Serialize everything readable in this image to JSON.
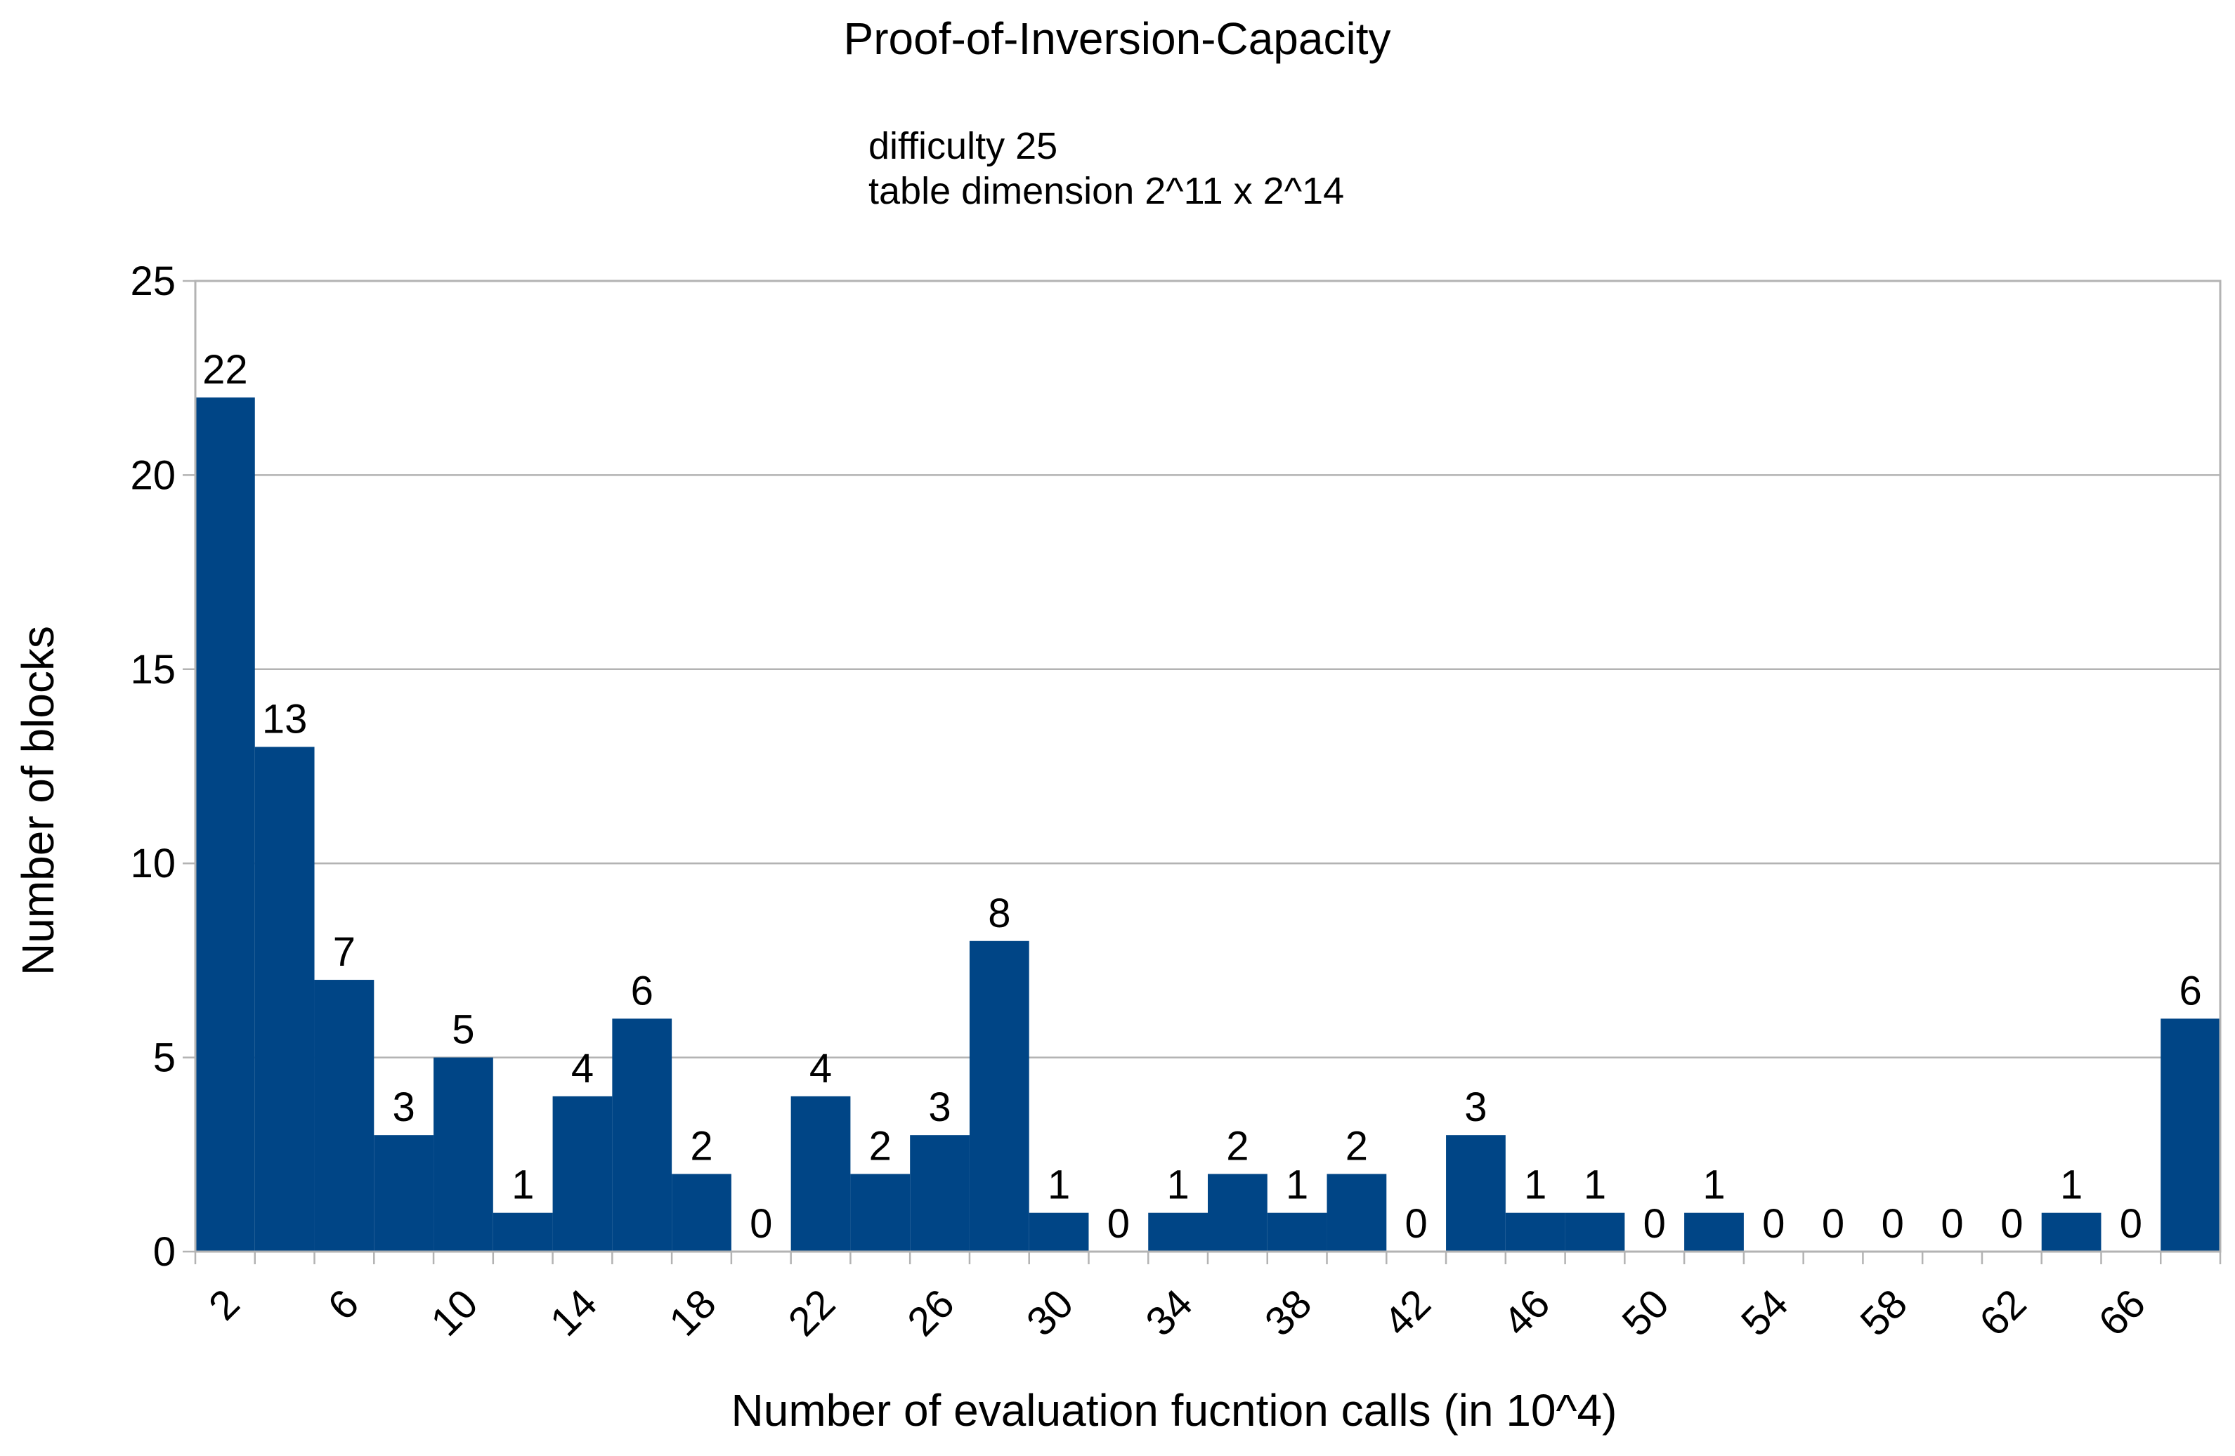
{
  "chart_data": {
    "type": "bar",
    "title": "Proof-of-Inversion-Capacity",
    "subtitle_lines": [
      "difficulty 25",
      "table dimension 2^11 x 2^14"
    ],
    "xlabel": "Number of evaluation fucntion calls (in 10^4)",
    "ylabel": "Number of blocks",
    "ylim": [
      0,
      25
    ],
    "yticks": [
      0,
      5,
      10,
      15,
      20,
      25
    ],
    "grid": true,
    "bar_color": "#004586",
    "categories": [
      "2",
      "4",
      "6",
      "8",
      "10",
      "12",
      "14",
      "16",
      "18",
      "20",
      "22",
      "24",
      "26",
      "28",
      "30",
      "32",
      "34",
      "36",
      "38",
      "40",
      "42",
      "44",
      "46",
      "48",
      "50",
      "52",
      "54",
      "56",
      "58",
      "60",
      "62",
      "64",
      "66",
      "68"
    ],
    "xtick_labels": [
      "2",
      "6",
      "10",
      "14",
      "18",
      "22",
      "26",
      "30",
      "34",
      "38",
      "42",
      "46",
      "50",
      "54",
      "58",
      "62",
      "66"
    ],
    "values": [
      22,
      13,
      7,
      3,
      5,
      1,
      4,
      6,
      2,
      0,
      4,
      2,
      3,
      8,
      1,
      0,
      1,
      2,
      1,
      2,
      0,
      3,
      1,
      1,
      0,
      1,
      0,
      0,
      0,
      0,
      0,
      1,
      0,
      6
    ]
  }
}
